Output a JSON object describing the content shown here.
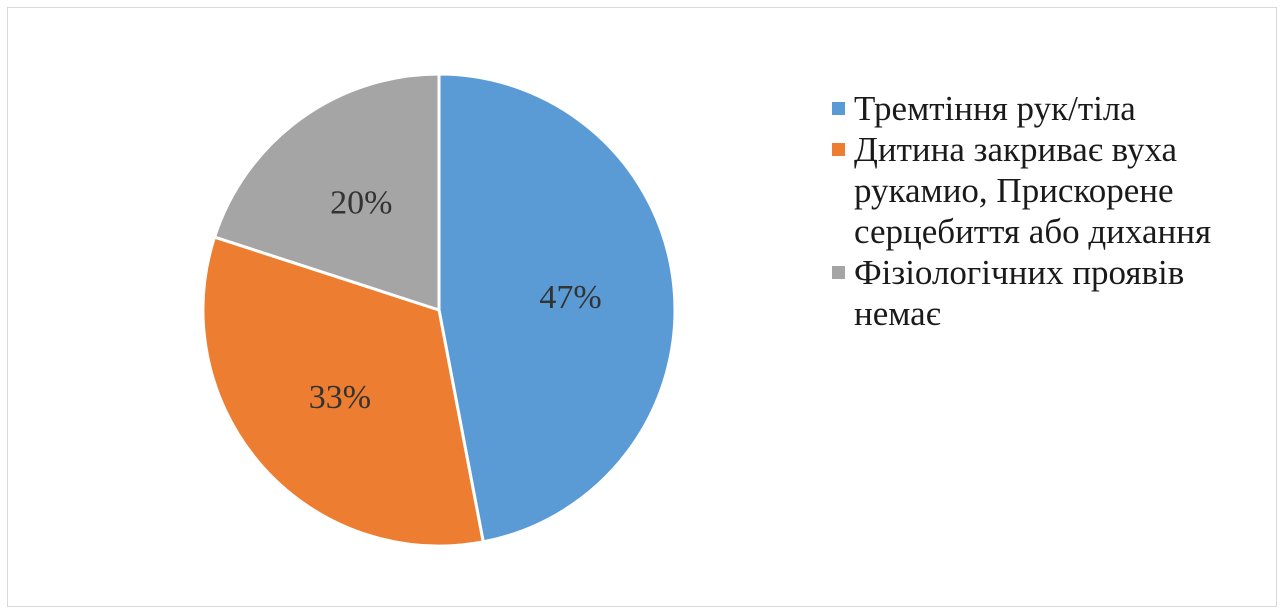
{
  "chart_data": {
    "type": "pie",
    "slices": [
      {
        "label": "Тремтіння рук/тіла",
        "value": 47,
        "display": "47%",
        "color": "#5b9bd5"
      },
      {
        "label": "Дитина закриває вуха\nрукамио, Прискорене\nсерцебиття або дихання",
        "value": 33,
        "display": "33%",
        "color": "#ed7d31"
      },
      {
        "label": "Фізіологічних проявів\nнемає",
        "value": 20,
        "display": "20%",
        "color": "#a5a5a5"
      }
    ],
    "legend_position": "right"
  }
}
